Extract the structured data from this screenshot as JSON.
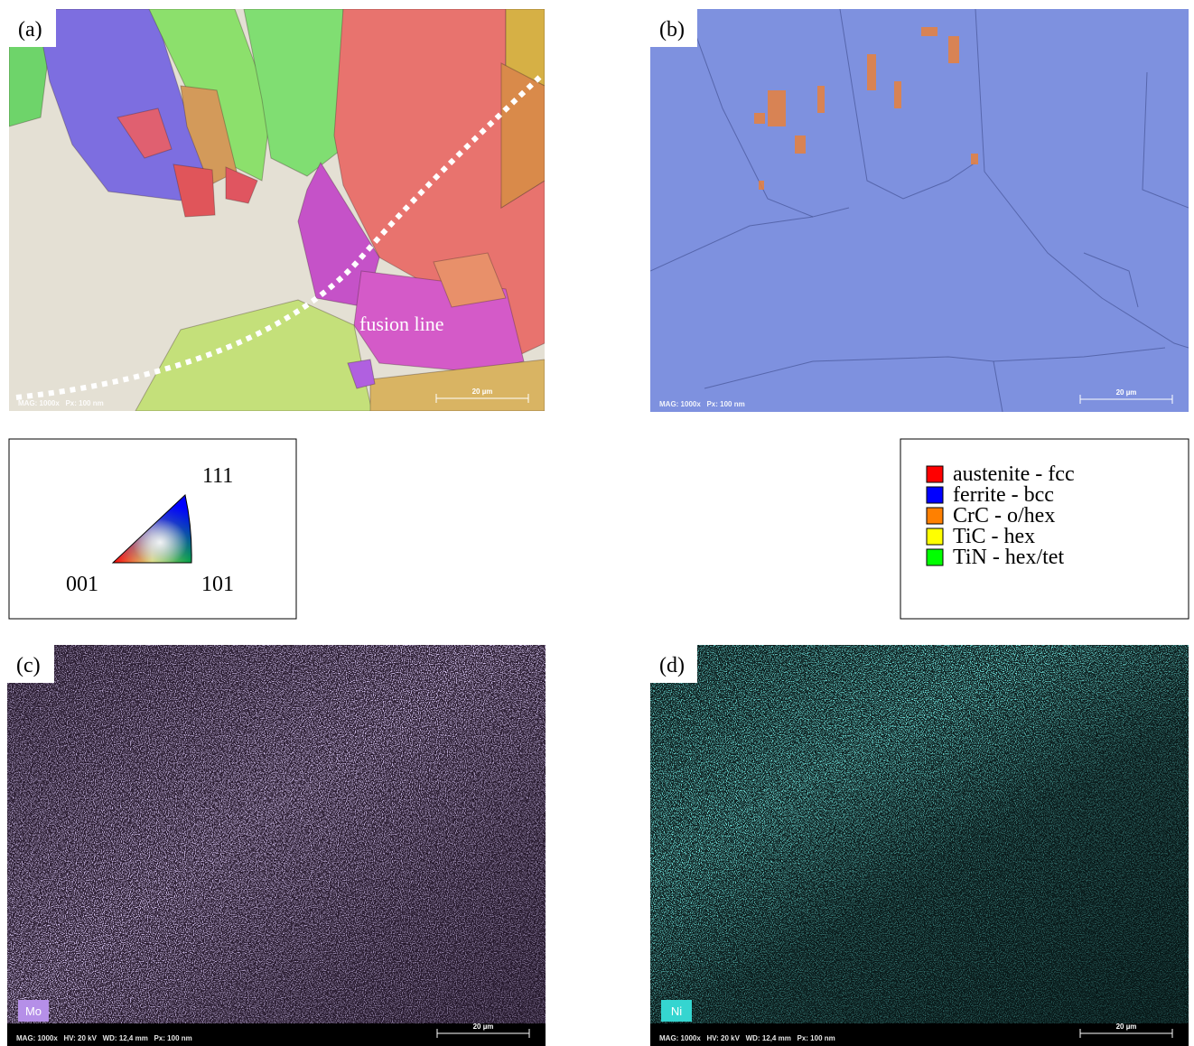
{
  "panels": [
    {
      "label": "(a)",
      "annotation": "fusion line",
      "info": "MAG: 1000x   Px: 100 nm",
      "scale_bar": "20 µm"
    },
    {
      "label": "(b)",
      "info": "MAG: 1000x   Px: 100 nm",
      "scale_bar": "20 µm"
    },
    {
      "label": "(c)",
      "element": "Mo",
      "info": "MAG: 1000x   HV: 20 kV   WD: 12,4 mm   Px: 100 nm",
      "scale_bar": "20 µm"
    },
    {
      "label": "(d)",
      "element": "Ni",
      "info": "MAG: 1000x   HV: 20 kV   WD: 12,4 mm   Px: 100 nm",
      "scale_bar": "20 µm"
    }
  ],
  "ipf_legend": {
    "corners": [
      "111",
      "001",
      "101"
    ]
  },
  "phase_legend": {
    "items": [
      {
        "name": "austenite - fcc",
        "color": "#ff0000"
      },
      {
        "name": "ferrite - bcc",
        "color": "#0000ff"
      },
      {
        "name": "CrC - o/hex",
        "color": "#ff8000"
      },
      {
        "name": "TiC - hex",
        "color": "#ffff00"
      },
      {
        "name": "TiN - hex/tet",
        "color": "#00ff00"
      }
    ]
  }
}
